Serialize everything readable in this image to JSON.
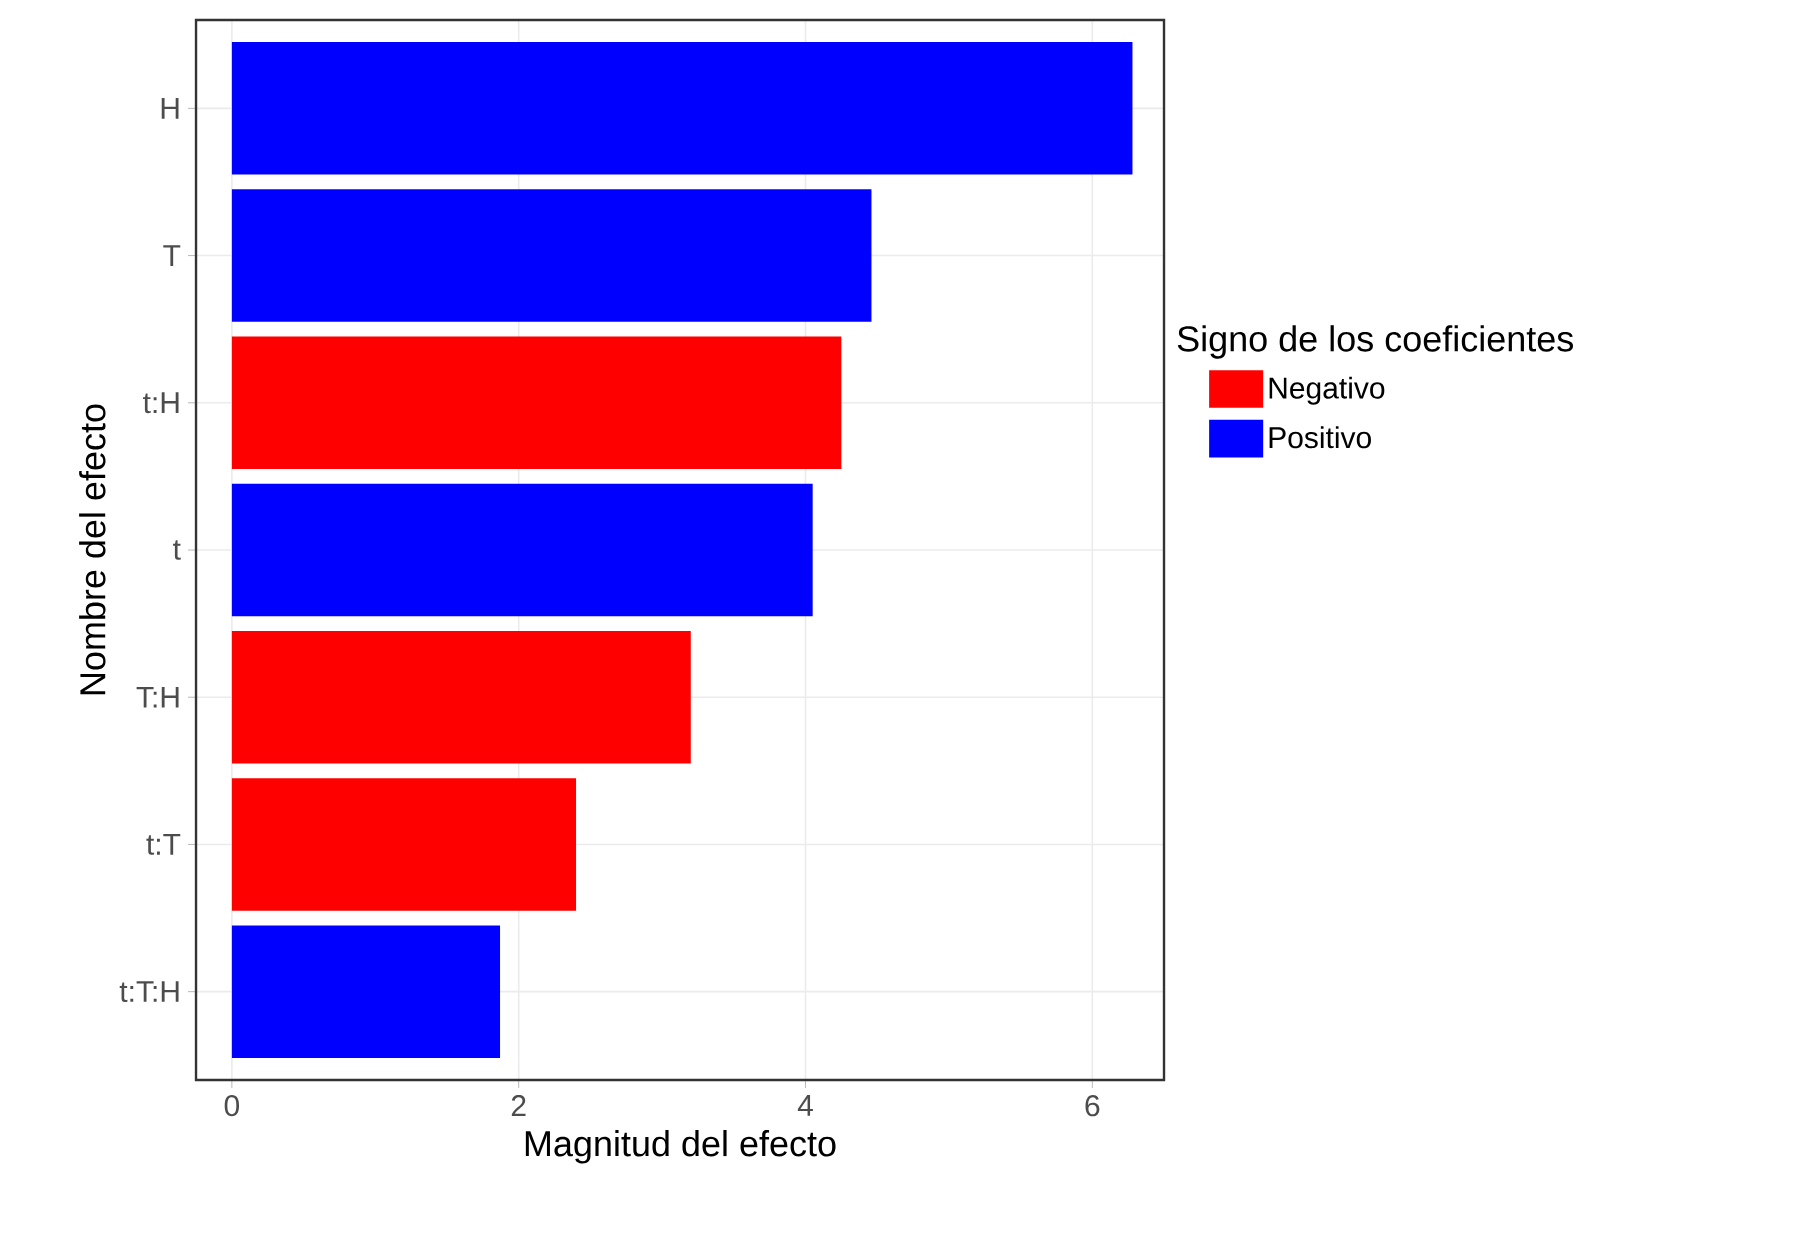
{
  "chart_data": {
    "type": "bar",
    "orientation": "horizontal",
    "xlabel": "Magnitud del efecto",
    "ylabel": "Nombre del efecto",
    "legend_title": "Signo de los coeficientes",
    "categories": [
      "H",
      "T",
      "t:H",
      "t",
      "T:H",
      "t:T",
      "t:T:H"
    ],
    "series": [
      {
        "name": "Negativo",
        "color": "#ff0000",
        "values": [
          null,
          null,
          4.25,
          null,
          3.2,
          2.4,
          null
        ]
      },
      {
        "name": "Positivo",
        "color": "#0000ff",
        "values": [
          6.28,
          4.46,
          null,
          4.05,
          null,
          null,
          1.87
        ]
      }
    ],
    "xlim": [
      -0.25,
      6.5
    ],
    "xticks": [
      0,
      2,
      4,
      6
    ],
    "grid": true,
    "legend": "right"
  }
}
